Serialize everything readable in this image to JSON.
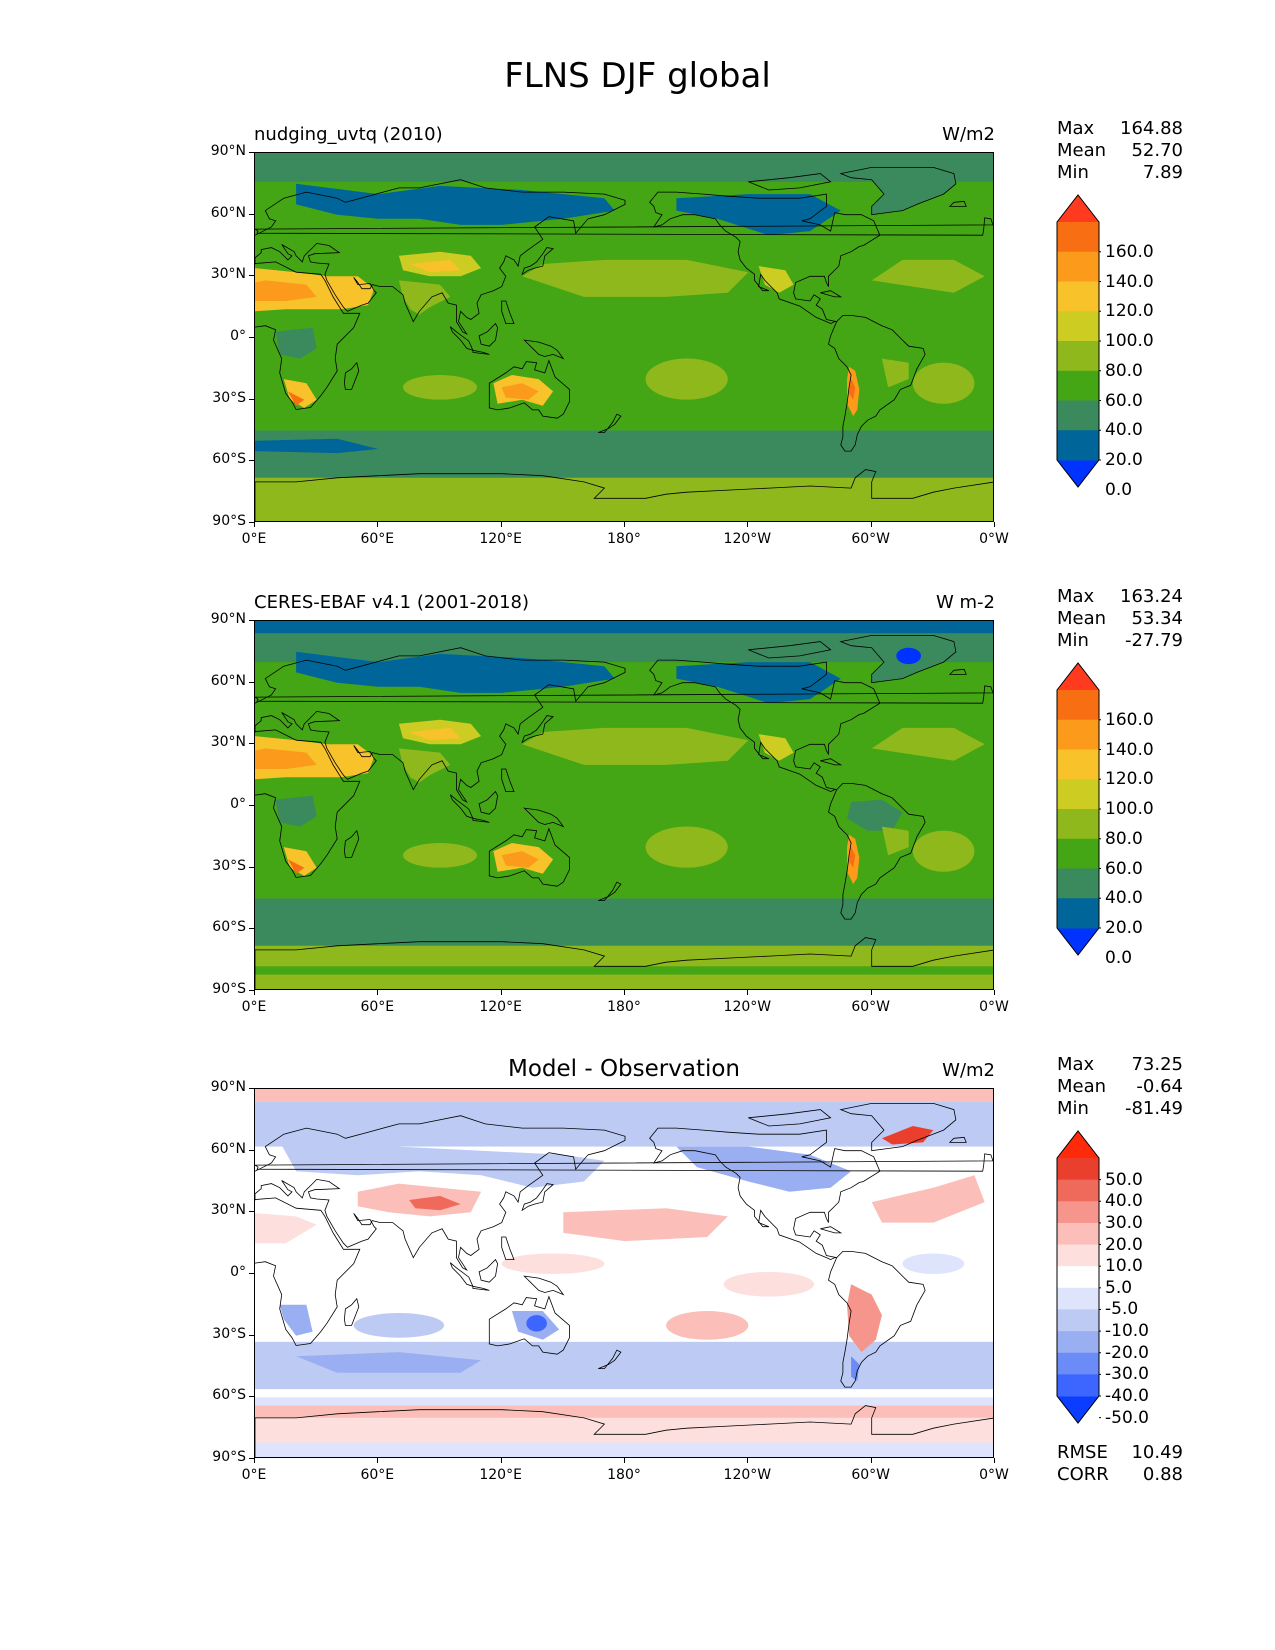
{
  "figure_title": "FLNS DJF global",
  "colors": {
    "abs_levels": [
      "#0033ff",
      "#006699",
      "#3a8a5e",
      "#44a515",
      "#8fb81c",
      "#cccc22",
      "#f8c22a",
      "#fb9a1b",
      "#f86e12",
      "#ff3a1e"
    ],
    "diff_levels": [
      "#0a3dff",
      "#3c66ff",
      "#6b8cf7",
      "#9aaff2",
      "#bccaf4",
      "#dde4fb",
      "#ffffff",
      "#fde0de",
      "#fbbeb8",
      "#f6958c",
      "#f06a5c",
      "#ea3f2c",
      "#ff2a0a"
    ],
    "coastline": "#000000"
  },
  "panels": [
    {
      "id": "model",
      "title_left": "nudging_uvtq (2010)",
      "title_center": "",
      "units": "W/m2",
      "stats": [
        {
          "label": "Max",
          "value": "164.88"
        },
        {
          "label": "Mean",
          "value": "52.70"
        },
        {
          "label": "Min",
          "value": "7.89"
        }
      ],
      "colorbar": {
        "type": "abs",
        "labels": [
          "160.0",
          "140.0",
          "120.0",
          "100.0",
          "80.0",
          "60.0",
          "40.0",
          "20.0",
          "0.0"
        ]
      }
    },
    {
      "id": "obs",
      "title_left": "CERES-EBAF v4.1 (2001-2018)",
      "title_center": "",
      "units": "W m-2",
      "stats": [
        {
          "label": "Max",
          "value": "163.24"
        },
        {
          "label": "Mean",
          "value": "53.34"
        },
        {
          "label": "Min",
          "value": "-27.79"
        }
      ],
      "colorbar": {
        "type": "abs",
        "labels": [
          "160.0",
          "140.0",
          "120.0",
          "100.0",
          "80.0",
          "60.0",
          "40.0",
          "20.0",
          "0.0"
        ]
      }
    },
    {
      "id": "diff",
      "title_left": "",
      "title_center": "Model - Observation",
      "units": "W/m2",
      "stats": [
        {
          "label": "Max",
          "value": "73.25"
        },
        {
          "label": "Mean",
          "value": "-0.64"
        },
        {
          "label": "Min",
          "value": "-81.49"
        }
      ],
      "colorbar": {
        "type": "diff",
        "labels": [
          "50.0",
          "40.0",
          "30.0",
          "20.0",
          "10.0",
          "5.0",
          "-5.0",
          "-10.0",
          "-20.0",
          "-30.0",
          "-40.0",
          "-50.0"
        ]
      },
      "bottom_stats": [
        {
          "label": "RMSE",
          "value": "10.49"
        },
        {
          "label": "CORR",
          "value": "0.88"
        }
      ]
    }
  ],
  "axes": {
    "lat_ticks": [
      "90°N",
      "60°N",
      "30°N",
      "0°",
      "30°S",
      "60°S",
      "90°S"
    ],
    "lon_ticks": [
      "0°E",
      "60°E",
      "120°E",
      "180°",
      "120°W",
      "60°W",
      "0°W"
    ]
  }
}
